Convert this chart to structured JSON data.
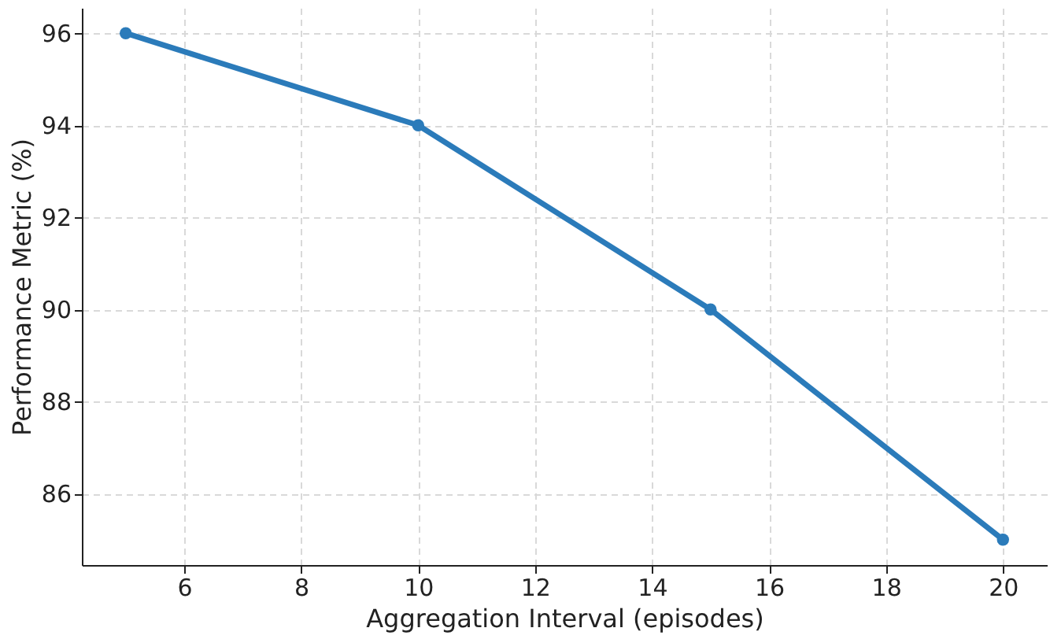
{
  "chart_data": {
    "type": "line",
    "xlabel": "Aggregation Interval (episodes)",
    "ylabel": "Performance Metric (%)",
    "x": [
      5,
      10,
      15,
      20
    ],
    "series": [
      {
        "color": "#2b7bba",
        "values": [
          96,
          94,
          90,
          85
        ]
      }
    ],
    "xlim": [
      4.25,
      20.75
    ],
    "ylim": [
      84.45,
      96.55
    ],
    "xticks": [
      6,
      8,
      10,
      12,
      14,
      16,
      18,
      20
    ],
    "yticks": [
      86,
      88,
      90,
      92,
      94,
      96
    ],
    "grid": true,
    "marker": "circle",
    "line_style": "solid"
  }
}
